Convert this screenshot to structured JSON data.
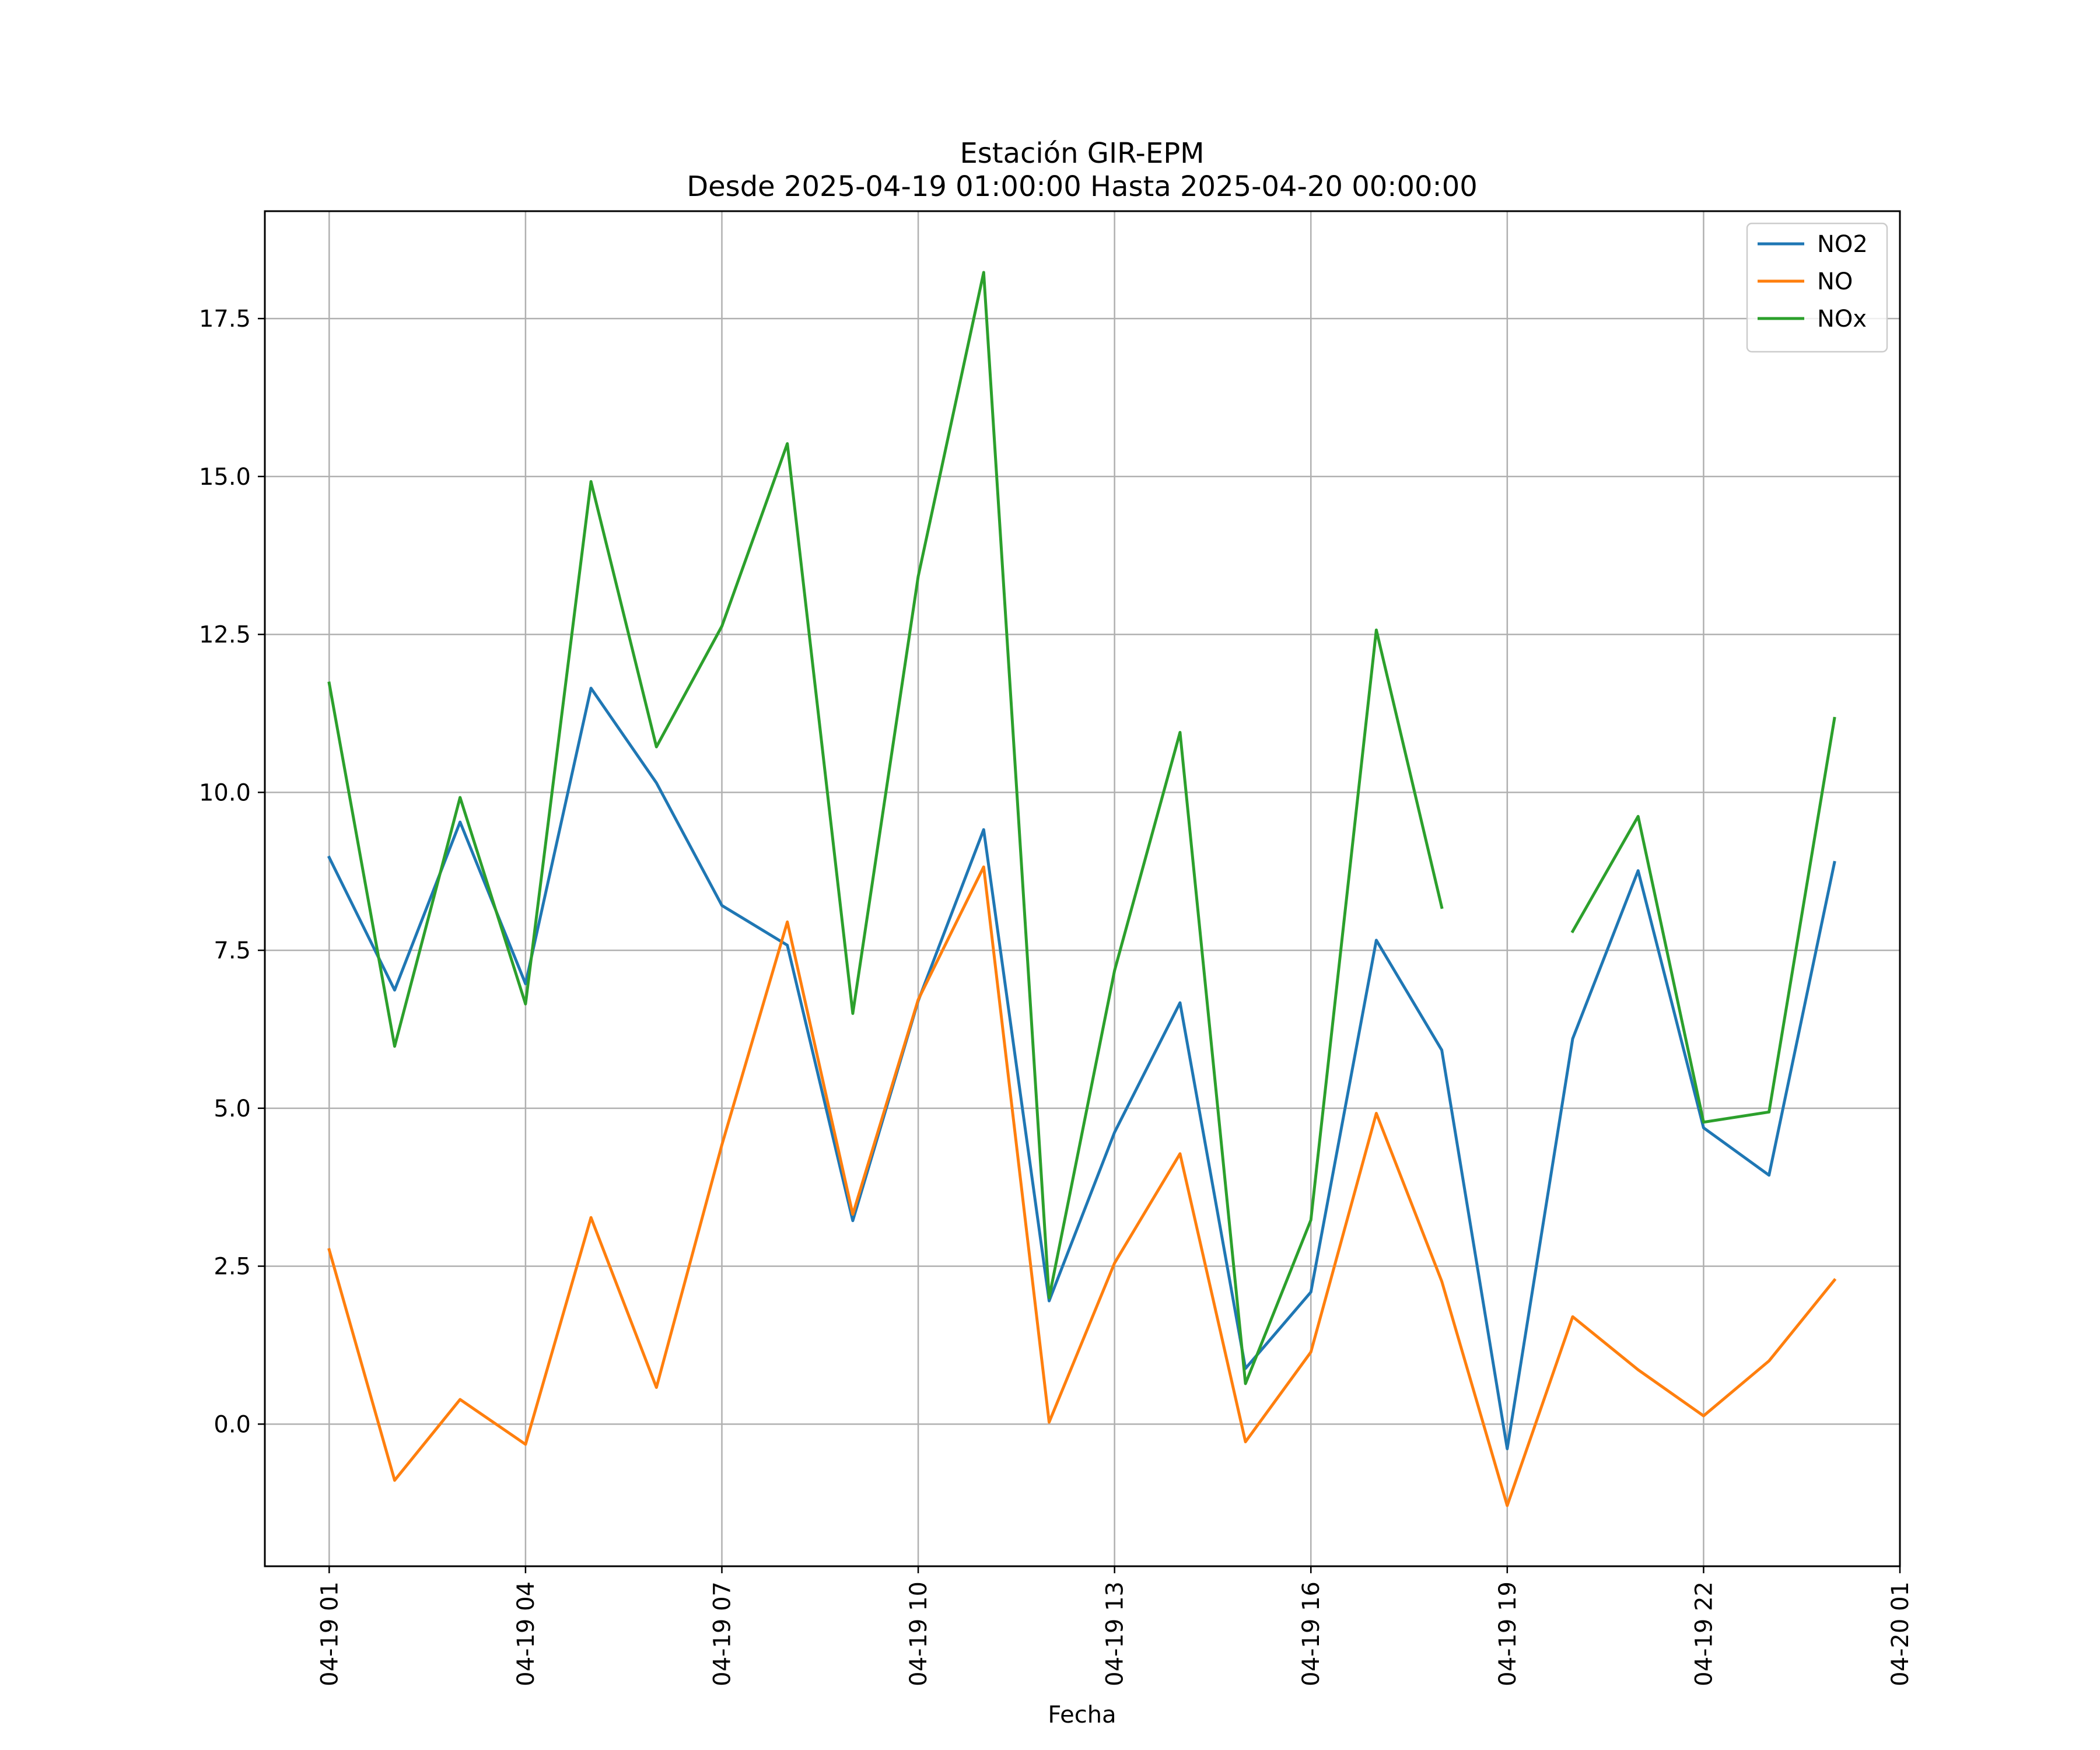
{
  "chart_data": {
    "type": "line",
    "title": "Estación GIR-EPM",
    "subtitle": "Desde 2025-04-19 01:00:00 Hasta 2025-04-20 00:00:00",
    "xlabel": "Fecha",
    "ylabel": "",
    "x": [
      "2025-04-19 01:00",
      "2025-04-19 02:00",
      "2025-04-19 03:00",
      "2025-04-19 04:00",
      "2025-04-19 05:00",
      "2025-04-19 06:00",
      "2025-04-19 07:00",
      "2025-04-19 08:00",
      "2025-04-19 09:00",
      "2025-04-19 10:00",
      "2025-04-19 11:00",
      "2025-04-19 12:00",
      "2025-04-19 13:00",
      "2025-04-19 14:00",
      "2025-04-19 15:00",
      "2025-04-19 16:00",
      "2025-04-19 17:00",
      "2025-04-19 18:00",
      "2025-04-19 19:00",
      "2025-04-19 20:00",
      "2025-04-19 21:00",
      "2025-04-19 22:00",
      "2025-04-19 23:00",
      "2025-04-20 00:00"
    ],
    "series": [
      {
        "name": "NO2",
        "color": "#1f77b4",
        "values": [
          8.97,
          6.87,
          9.53,
          6.97,
          11.65,
          10.15,
          8.21,
          7.58,
          3.22,
          6.7,
          9.41,
          1.95,
          4.62,
          6.67,
          0.88,
          2.09,
          7.66,
          5.92,
          -0.39,
          6.1,
          8.76,
          4.69,
          3.94,
          8.89
        ]
      },
      {
        "name": "NO",
        "color": "#ff7f0e",
        "values": [
          2.76,
          -0.89,
          0.39,
          -0.32,
          3.27,
          0.58,
          4.42,
          7.95,
          3.32,
          6.72,
          8.82,
          0.03,
          2.55,
          4.28,
          -0.28,
          1.14,
          4.92,
          2.26,
          -1.29,
          1.7,
          0.86,
          0.13,
          1.0,
          2.28
        ]
      },
      {
        "name": "NOx",
        "color": "#2ca02c",
        "values": [
          11.73,
          5.98,
          9.92,
          6.65,
          14.92,
          10.72,
          12.63,
          15.52,
          6.5,
          13.42,
          18.23,
          2.0,
          7.18,
          10.95,
          0.64,
          3.23,
          12.57,
          8.18,
          null,
          7.8,
          9.62,
          4.78,
          4.94,
          11.17
        ]
      }
    ],
    "xticks": [
      "04-19 01",
      "04-19 04",
      "04-19 07",
      "04-19 10",
      "04-19 13",
      "04-19 16",
      "04-19 19",
      "04-19 22",
      "04-20 01"
    ],
    "yticks": [
      "0.0",
      "2.5",
      "5.0",
      "7.5",
      "10.0",
      "12.5",
      "15.0",
      "17.5"
    ],
    "xlim": [
      "2025-04-19 00:01",
      "2025-04-20 01:00"
    ],
    "ylim": [
      -2.25,
      19.2
    ],
    "grid": true,
    "legend": "top-right"
  }
}
